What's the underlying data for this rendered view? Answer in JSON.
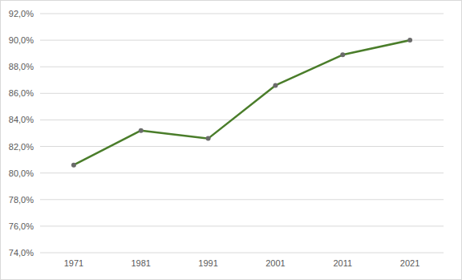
{
  "chart_data": {
    "type": "line",
    "categories": [
      "1971",
      "1981",
      "1991",
      "2001",
      "2011",
      "2021"
    ],
    "values": [
      80.6,
      83.2,
      82.6,
      86.6,
      88.9,
      90.0
    ],
    "color": "#4a7d2a",
    "marker": "circle",
    "ylim": [
      74,
      92
    ],
    "yticks": [
      {
        "value": 74,
        "label": "74,0%"
      },
      {
        "value": 76,
        "label": "76,0%"
      },
      {
        "value": 78,
        "label": "78,0%"
      },
      {
        "value": 80,
        "label": "80,0%"
      },
      {
        "value": 82,
        "label": "82,0%"
      },
      {
        "value": 84,
        "label": "84,0%"
      },
      {
        "value": 86,
        "label": "86,0%"
      },
      {
        "value": 88,
        "label": "88,0%"
      },
      {
        "value": 90,
        "label": "90,0%"
      },
      {
        "value": 92,
        "label": "92,0%"
      }
    ],
    "grid": true
  }
}
